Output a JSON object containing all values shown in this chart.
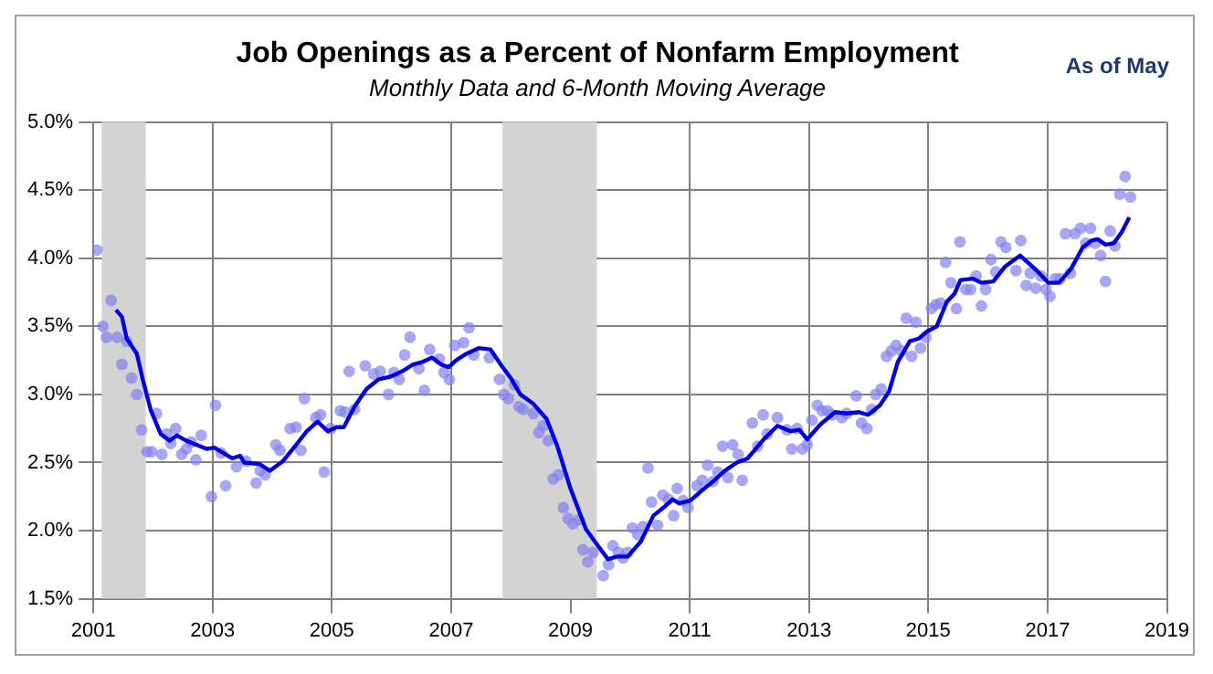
{
  "chart_data": {
    "type": "scatter",
    "title": "Job Openings as a Percent of Nonfarm Employment",
    "subtitle": "Monthly Data and 6-Month Moving Average",
    "annotations": [
      "As of May"
    ],
    "xlim": [
      2001,
      2019
    ],
    "xticks": [
      2001,
      2003,
      2005,
      2007,
      2009,
      2011,
      2013,
      2015,
      2017,
      2019
    ],
    "ylim": [
      1.5,
      5.0
    ],
    "yticks": [
      {
        "value": 1.5,
        "label": "1.5%"
      },
      {
        "value": 2,
        "label": "2.0%"
      },
      {
        "value": 2.5,
        "label": "2.5%"
      },
      {
        "value": 3,
        "label": "3.0%"
      },
      {
        "value": 3.5,
        "label": "3.5%"
      },
      {
        "value": 4,
        "label": "4.0%"
      },
      {
        "value": 4.5,
        "label": "4.5%"
      },
      {
        "value": 5,
        "label": "5.0%"
      }
    ],
    "grid": true,
    "legend": false,
    "bands": [
      {
        "axis": "x",
        "from": 2001.14,
        "to": 2001.88,
        "color": "#d3d3d3"
      },
      {
        "axis": "x",
        "from": 2007.86,
        "to": 2009.44,
        "color": "#d3d3d3"
      }
    ],
    "series": [
      {
        "marker": "circle",
        "color": "#8080f0",
        "x": [
          2001.06,
          2001.16,
          2001.22,
          2001.3,
          2001.4,
          2001.48,
          2001.56,
          2001.64,
          2001.73,
          2001.81,
          2001.9,
          2001.98,
          2002.06,
          2002.15,
          2002.23,
          2002.3,
          2002.38,
          2002.48,
          2002.56,
          2002.64,
          2002.72,
          2002.81,
          2002.98,
          2003.05,
          2003.14,
          2003.22,
          2003.4,
          2003.56,
          2003.73,
          2003.8,
          2003.88,
          2004.06,
          2004.13,
          2004.3,
          2004.4,
          2004.48,
          2004.54,
          2004.73,
          2004.81,
          2004.87,
          2004.98,
          2005.14,
          2005.22,
          2005.29,
          2005.38,
          2005.56,
          2005.7,
          2005.81,
          2005.95,
          2006.04,
          2006.13,
          2006.22,
          2006.31,
          2006.46,
          2006.55,
          2006.64,
          2006.8,
          2006.88,
          2006.97,
          2007.06,
          2007.21,
          2007.3,
          2007.38,
          2007.64,
          2007.81,
          2007.88,
          2007.96,
          2008.06,
          2008.14,
          2008.21,
          2008.38,
          2008.47,
          2008.54,
          2008.63,
          2008.71,
          2008.8,
          2008.88,
          2008.96,
          2009.04,
          2009.14,
          2009.21,
          2009.29,
          2009.38,
          2009.55,
          2009.64,
          2009.71,
          2009.8,
          2009.88,
          2009.96,
          2010.04,
          2010.13,
          2010.22,
          2010.3,
          2010.36,
          2010.46,
          2010.55,
          2010.64,
          2010.73,
          2010.79,
          2010.89,
          2010.97,
          2011.12,
          2011.21,
          2011.3,
          2011.39,
          2011.47,
          2011.55,
          2011.64,
          2011.72,
          2011.81,
          2011.88,
          2012.05,
          2012.14,
          2012.23,
          2012.3,
          2012.47,
          2012.63,
          2012.71,
          2012.8,
          2012.89,
          2012.97,
          2013.05,
          2013.14,
          2013.22,
          2013.31,
          2013.39,
          2013.55,
          2013.63,
          2013.79,
          2013.88,
          2013.97,
          2014.05,
          2014.12,
          2014.21,
          2014.3,
          2014.38,
          2014.46,
          2014.55,
          2014.63,
          2014.72,
          2014.79,
          2014.87,
          2014.96,
          2015.05,
          2015.13,
          2015.21,
          2015.29,
          2015.38,
          2015.47,
          2015.53,
          2015.63,
          2015.71,
          2015.8,
          2015.89,
          2015.96,
          2016.05,
          2016.13,
          2016.22,
          2016.3,
          2016.47,
          2016.55,
          2016.64,
          2016.71,
          2016.8,
          2016.89,
          2016.97,
          2017.04,
          2017.13,
          2017.21,
          2017.3,
          2017.38,
          2017.46,
          2017.55,
          2017.64,
          2017.72,
          2017.8,
          2017.89,
          2017.97,
          2018.05,
          2018.13,
          2018.21,
          2018.3,
          2018.39
        ],
        "values": [
          4.06,
          3.5,
          3.42,
          3.69,
          3.42,
          3.22,
          3.39,
          3.12,
          3.0,
          2.74,
          2.58,
          2.58,
          2.86,
          2.56,
          2.71,
          2.64,
          2.75,
          2.56,
          2.6,
          2.65,
          2.52,
          2.7,
          2.25,
          2.92,
          2.57,
          2.33,
          2.47,
          2.51,
          2.35,
          2.44,
          2.41,
          2.63,
          2.59,
          2.75,
          2.76,
          2.59,
          2.97,
          2.83,
          2.85,
          2.43,
          2.75,
          2.88,
          2.87,
          3.17,
          2.89,
          3.21,
          3.15,
          3.17,
          3.0,
          3.16,
          3.11,
          3.29,
          3.42,
          3.19,
          3.03,
          3.33,
          3.26,
          3.16,
          3.11,
          3.36,
          3.38,
          3.49,
          3.29,
          3.27,
          3.11,
          3.0,
          2.97,
          3.07,
          2.91,
          2.89,
          2.86,
          2.72,
          2.77,
          2.66,
          2.38,
          2.41,
          2.17,
          2.09,
          2.05,
          2.08,
          1.86,
          1.77,
          1.84,
          1.67,
          1.75,
          1.89,
          1.84,
          1.8,
          1.84,
          2.02,
          1.97,
          2.03,
          2.46,
          2.21,
          2.04,
          2.26,
          2.23,
          2.11,
          2.31,
          2.22,
          2.17,
          2.33,
          2.37,
          2.48,
          2.36,
          2.43,
          2.62,
          2.39,
          2.63,
          2.56,
          2.37,
          2.79,
          2.62,
          2.85,
          2.71,
          2.83,
          2.74,
          2.6,
          2.75,
          2.6,
          2.63,
          2.81,
          2.92,
          2.88,
          2.88,
          2.85,
          2.83,
          2.86,
          2.99,
          2.79,
          2.75,
          2.89,
          3.0,
          3.04,
          3.28,
          3.32,
          3.36,
          3.32,
          3.56,
          3.28,
          3.53,
          3.34,
          3.42,
          3.63,
          3.66,
          3.67,
          3.97,
          3.82,
          3.63,
          4.12,
          3.77,
          3.77,
          3.87,
          3.65,
          3.77,
          3.99,
          3.9,
          4.12,
          4.08,
          3.91,
          4.13,
          3.8,
          3.89,
          3.78,
          3.87,
          3.77,
          3.72,
          3.85,
          3.85,
          4.18,
          3.89,
          4.18,
          4.22,
          4.11,
          4.22,
          4.11,
          4.02,
          3.83,
          4.2,
          4.09,
          4.47,
          4.6,
          4.45
        ]
      },
      {
        "type": "line",
        "marker": "none",
        "line_style": "solid",
        "color": "#0000e0",
        "x": [
          2001.38,
          2001.48,
          2001.56,
          2001.73,
          2001.83,
          2001.96,
          2002.13,
          2002.28,
          2002.4,
          2002.56,
          2002.73,
          2002.9,
          2003.03,
          2003.33,
          2003.46,
          2003.53,
          2003.78,
          2003.96,
          2004.18,
          2004.4,
          2004.58,
          2004.76,
          2004.93,
          2005.08,
          2005.2,
          2005.38,
          2005.58,
          2005.78,
          2005.98,
          2006.18,
          2006.36,
          2006.53,
          2006.68,
          2006.83,
          2006.96,
          2007.08,
          2007.26,
          2007.46,
          2007.66,
          2007.83,
          2008.0,
          2008.16,
          2008.38,
          2008.6,
          2008.78,
          2009.0,
          2009.26,
          2009.46,
          2009.63,
          2009.78,
          2009.96,
          2010.18,
          2010.39,
          2010.59,
          2010.71,
          2010.82,
          2011.01,
          2011.19,
          2011.39,
          2011.59,
          2011.79,
          2011.97,
          2012.24,
          2012.47,
          2012.69,
          2012.84,
          2012.97,
          2013.19,
          2013.44,
          2013.64,
          2013.84,
          2013.99,
          2014.19,
          2014.34,
          2014.49,
          2014.69,
          2014.84,
          2014.97,
          2015.14,
          2015.31,
          2015.44,
          2015.54,
          2015.74,
          2015.89,
          2016.09,
          2016.29,
          2016.54,
          2016.69,
          2016.84,
          2017.01,
          2017.19,
          2017.39,
          2017.59,
          2017.74,
          2017.84,
          2017.97,
          2018.11,
          2018.24,
          2018.37
        ],
        "values": [
          3.62,
          3.57,
          3.41,
          3.3,
          3.11,
          2.89,
          2.71,
          2.66,
          2.7,
          2.66,
          2.63,
          2.6,
          2.61,
          2.53,
          2.55,
          2.5,
          2.49,
          2.44,
          2.51,
          2.63,
          2.73,
          2.8,
          2.73,
          2.76,
          2.76,
          2.91,
          3.04,
          3.11,
          3.13,
          3.17,
          3.22,
          3.24,
          3.27,
          3.22,
          3.2,
          3.25,
          3.3,
          3.34,
          3.33,
          3.22,
          3.12,
          3.0,
          2.93,
          2.82,
          2.62,
          2.31,
          2.01,
          1.89,
          1.79,
          1.81,
          1.81,
          1.92,
          2.11,
          2.18,
          2.23,
          2.2,
          2.22,
          2.29,
          2.36,
          2.44,
          2.5,
          2.53,
          2.67,
          2.77,
          2.73,
          2.74,
          2.67,
          2.78,
          2.87,
          2.86,
          2.87,
          2.85,
          2.92,
          3.02,
          3.24,
          3.39,
          3.41,
          3.46,
          3.5,
          3.68,
          3.74,
          3.84,
          3.85,
          3.82,
          3.83,
          3.94,
          4.02,
          3.96,
          3.9,
          3.82,
          3.82,
          3.92,
          4.08,
          4.13,
          4.14,
          4.1,
          4.11,
          4.19,
          4.3
        ]
      }
    ]
  }
}
